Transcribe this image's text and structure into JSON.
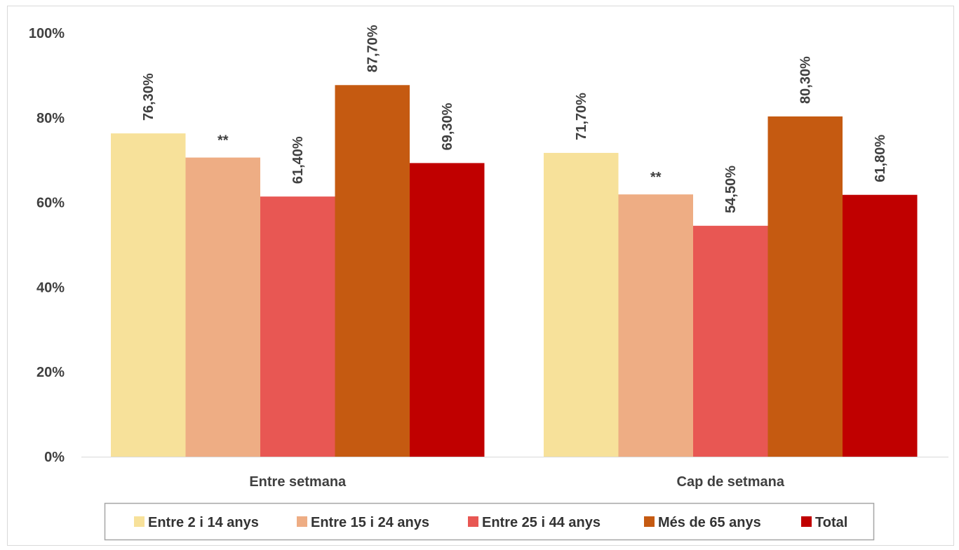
{
  "chart_data": {
    "type": "bar",
    "title": "",
    "xlabel": "",
    "ylabel": "",
    "categories": [
      "Entre setmana",
      "Cap de setmana"
    ],
    "series": [
      {
        "name": "Entre 2 i 14 anys",
        "color": "#f7e19a",
        "values": [
          76.3,
          71.7
        ],
        "labels": [
          "76,30%",
          "71,70%"
        ]
      },
      {
        "name": "Entre 15 i 24 anys",
        "color": "#eead84",
        "values": [
          70.6,
          61.9
        ],
        "labels": [
          "**",
          "**"
        ]
      },
      {
        "name": "Entre 25 i 44 anys",
        "color": "#e85753",
        "values": [
          61.4,
          54.5
        ],
        "labels": [
          "61,40%",
          "54,50%"
        ]
      },
      {
        "name": "Més de 65 anys",
        "color": "#c55a11",
        "values": [
          87.7,
          80.3
        ],
        "labels": [
          "87,70%",
          "80,30%"
        ]
      },
      {
        "name": "Total",
        "color": "#c00000",
        "values": [
          69.3,
          61.8
        ],
        "labels": [
          "69,30%",
          "61,80%"
        ]
      }
    ],
    "ylim": [
      0,
      100
    ],
    "yticks": [
      0,
      20,
      40,
      60,
      80,
      100
    ],
    "ytick_labels": [
      "0%",
      "20%",
      "40%",
      "60%",
      "80%",
      "100%"
    ],
    "grid": false,
    "legend_position": "bottom"
  }
}
